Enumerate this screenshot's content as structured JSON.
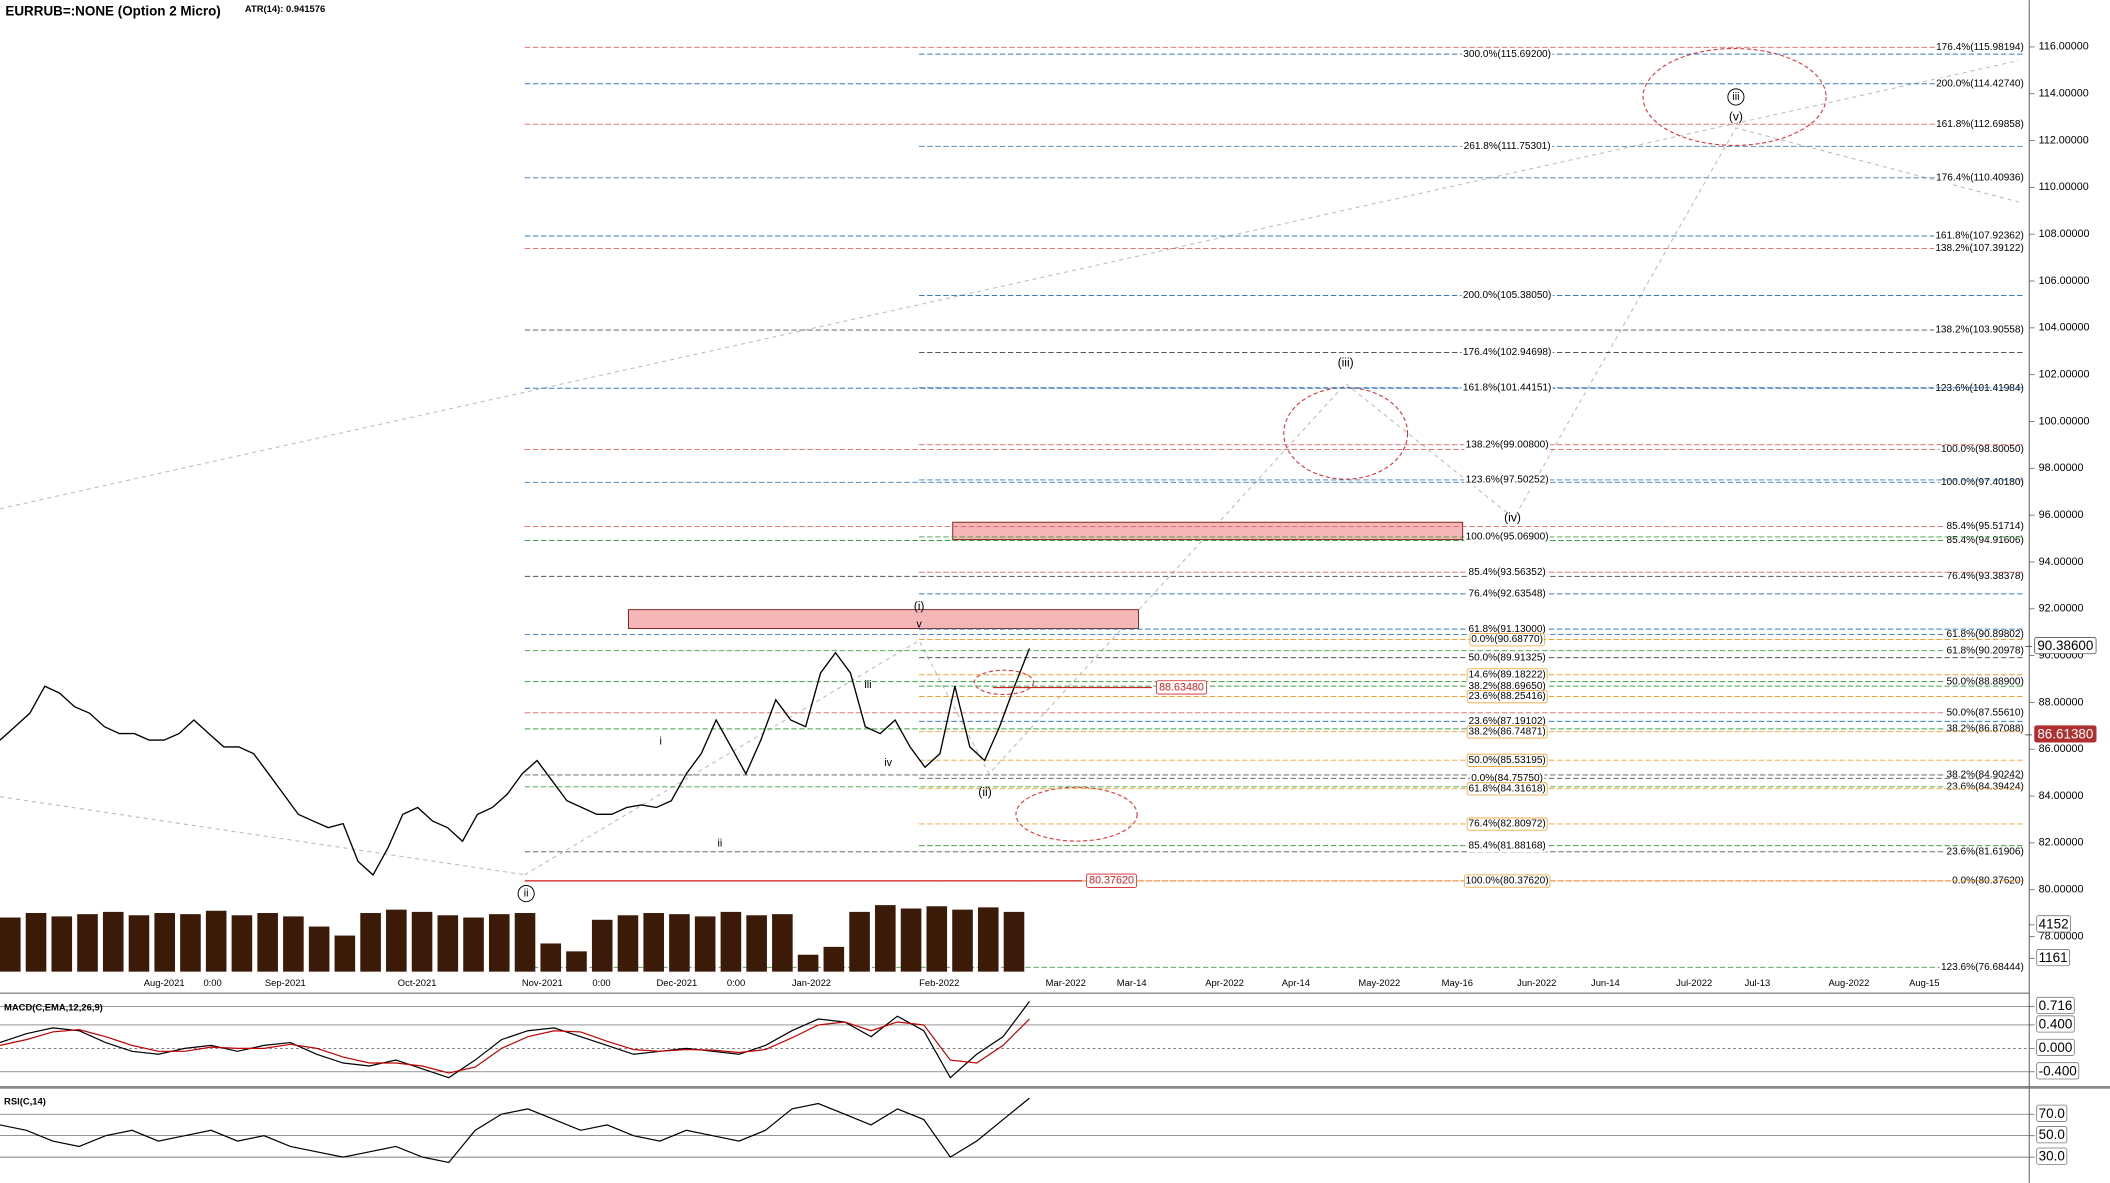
{
  "header": {
    "symbol": "EURRUB=:NONE (Option 2 Micro)",
    "atr": "ATR(14): 0.941576"
  },
  "chart_data": [
    {
      "type": "line",
      "series": [
        {
          "color": "#000000",
          "values": [
            86.39,
            86.96,
            87.54,
            88.69,
            88.4,
            87.82,
            87.54,
            86.96,
            86.67,
            86.67,
            86.39,
            86.39,
            86.67,
            87.25,
            86.67,
            86.1,
            86.1,
            85.81,
            84.95,
            84.08,
            83.22,
            82.93,
            82.65,
            82.82,
            81.21,
            80.63,
            81.78,
            83.22,
            83.51,
            82.93,
            82.65,
            82.07,
            83.22,
            83.51,
            84.08,
            84.95,
            85.52,
            84.66,
            83.8,
            83.51,
            83.22,
            83.22,
            83.51,
            83.62,
            83.51,
            83.8,
            84.95,
            85.81,
            87.25,
            86.1,
            84.95,
            86.39,
            88.11,
            87.25,
            86.96,
            89.26,
            90.12,
            89.26,
            86.96,
            86.67,
            87.25,
            86.1,
            85.23,
            85.81,
            88.69,
            86.1,
            85.52,
            86.96,
            88.69,
            90.3
          ]
        }
      ],
      "ylim": [
        76.5,
        118
      ],
      "yticks": [
        {
          "value": 78,
          "label": "78.00000"
        },
        {
          "value": 80,
          "label": "80.00000"
        },
        {
          "value": 82,
          "label": "82.00000"
        },
        {
          "value": 84,
          "label": "84.00000"
        },
        {
          "value": 86,
          "label": "86.00000"
        },
        {
          "value": 88,
          "label": "88.00000"
        },
        {
          "value": 90,
          "label": "90.00000"
        },
        {
          "value": 92,
          "label": "92.00000"
        },
        {
          "value": 94,
          "label": "94.00000"
        },
        {
          "value": 96,
          "label": "96.00000"
        },
        {
          "value": 98,
          "label": "98.00000"
        },
        {
          "value": 100,
          "label": "100.00000"
        },
        {
          "value": 102,
          "label": "102.00000"
        },
        {
          "value": 104,
          "label": "104.00000"
        },
        {
          "value": 106,
          "label": "106.00000"
        },
        {
          "value": 108,
          "label": "108.00000"
        },
        {
          "value": 110,
          "label": "110.00000"
        },
        {
          "value": 112,
          "label": "112.00000"
        },
        {
          "value": 114,
          "label": "114.00000"
        },
        {
          "value": 116,
          "label": "116.00000"
        }
      ],
      "xticks": [
        "Aug-2021",
        "0:00",
        "Sep-2021",
        "Oct-2021",
        "Nov-2021",
        "0:00",
        "Dec-2021",
        "0:00",
        "Jan-2022",
        "Feb-2022",
        "Mar-2022",
        "Mar-14",
        "Apr-2022",
        "Apr-14",
        "May-2022",
        "May-16",
        "Jun-2022",
        "Jun-14",
        "Jul-2022",
        "Jul-13",
        "Aug-2022",
        "Aug-15"
      ],
      "levels_center": [
        {
          "label": "300.0%(115.69200)",
          "value": 115.692,
          "color": "#3a7ab8"
        },
        {
          "label": "261.8%(111.75301)",
          "value": 111.75301,
          "color": "#3a7ab8"
        },
        {
          "label": "200.0%(105.38050)",
          "value": 105.3805,
          "color": "#3a7ab8"
        },
        {
          "label": "176.4%(102.94698)",
          "value": 102.94698,
          "color": "#555555"
        },
        {
          "label": "161.8%(101.44151)",
          "value": 101.44151,
          "color": "#3a7ab8"
        },
        {
          "label": "138.2%(99.00800)",
          "value": 99.008,
          "color": "#e06060"
        },
        {
          "label": "123.6%(97.50252)",
          "value": 97.50252,
          "color": "#3a7ab8"
        },
        {
          "label": "100.0%(95.06900)",
          "value": 95.069,
          "color": "#40a040"
        },
        {
          "label": "85.4%(93.56352)",
          "value": 93.56352,
          "color": "#e06060"
        },
        {
          "label": "76.4%(92.63548)",
          "value": 92.63548,
          "color": "#3a7ab8"
        },
        {
          "label": "61.8%(91.13000)",
          "value": 91.13,
          "color": "#3a7ab8"
        },
        {
          "label": "0.0%(90.68770)",
          "value": 90.6877,
          "color": "#f0a030"
        },
        {
          "label": "50.0%(89.91325)",
          "value": 89.91325,
          "color": "#555555"
        },
        {
          "label": "14.6%(89.18222)",
          "value": 89.18222,
          "color": "#f0a030"
        },
        {
          "label": "38.2%(88.69650)",
          "value": 88.6965,
          "color": "#40a040"
        },
        {
          "label": "23.6%(88.25416)",
          "value": 88.25416,
          "color": "#f0a030"
        },
        {
          "label": "23.6%(87.19102)",
          "value": 87.19102,
          "color": "#3a7ab8"
        },
        {
          "label": "38.2%(86.74871)",
          "value": 86.74871,
          "color": "#f0a030"
        },
        {
          "label": "50.0%(85.53195)",
          "value": 85.53195,
          "color": "#f0a030"
        },
        {
          "label": "0.0%(84.75750)",
          "value": 84.7575,
          "color": "#555555"
        },
        {
          "label": "61.8%(84.31618)",
          "value": 84.31618,
          "color": "#f0a030"
        },
        {
          "label": "76.4%(82.80972)",
          "value": 82.80972,
          "color": "#f0a030"
        },
        {
          "label": "85.4%(81.88168)",
          "value": 81.88168,
          "color": "#40a040"
        },
        {
          "label": "100.0%(80.37620)",
          "value": 80.3762,
          "color": "#f0a030"
        }
      ],
      "levels_right": [
        {
          "label": "176.4%(115.98194)",
          "value": 115.98194,
          "color": "#e06060"
        },
        {
          "label": "200.0%(114.42740)",
          "value": 114.4274,
          "color": "#3a7ab8"
        },
        {
          "label": "161.8%(112.69858)",
          "value": 112.69858,
          "color": "#e06060"
        },
        {
          "label": "176.4%(110.40936)",
          "value": 110.40936,
          "color": "#3a7ab8"
        },
        {
          "label": "161.8%(107.92362)",
          "value": 107.92362,
          "color": "#3a7ab8"
        },
        {
          "label": "138.2%(107.39122)",
          "value": 107.39122,
          "color": "#e06060"
        },
        {
          "label": "138.2%(103.90558)",
          "value": 103.90558,
          "color": "#555555"
        },
        {
          "label": "123.6%(101.41984)",
          "value": 101.41984,
          "color": "#3a7ab8"
        },
        {
          "label": "100.0%(98.80050)",
          "value": 98.8005,
          "color": "#e06060"
        },
        {
          "label": "100.0%(97.40180)",
          "value": 97.4018,
          "color": "#3a7ab8"
        },
        {
          "label": "85.4%(95.51714)",
          "value": 95.51714,
          "color": "#e06060"
        },
        {
          "label": "85.4%(94.91606)",
          "value": 94.91606,
          "color": "#40a040"
        },
        {
          "label": "76.4%(93.38378)",
          "value": 93.38378,
          "color": "#555555"
        },
        {
          "label": "61.8%(90.89802)",
          "value": 90.89802,
          "color": "#3a7ab8"
        },
        {
          "label": "61.8%(90.20978)",
          "value": 90.20978,
          "color": "#40a040"
        },
        {
          "label": "50.0%(88.88900)",
          "value": 88.889,
          "color": "#40a040"
        },
        {
          "label": "50.0%(87.55610)",
          "value": 87.5561,
          "color": "#e06060"
        },
        {
          "label": "38.2%(86.87088)",
          "value": 86.87088,
          "color": "#40a040"
        },
        {
          "label": "38.2%(84.90242)",
          "value": 84.90242,
          "color": "#555555"
        },
        {
          "label": "23.6%(84.39424)",
          "value": 84.39424,
          "color": "#40a040"
        },
        {
          "label": "23.6%(81.61906)",
          "value": 81.61906,
          "color": "#555555"
        },
        {
          "label": "0.0%(80.37620)",
          "value": 80.3762,
          "color": "#e06060"
        },
        {
          "label": "123.6%(76.68444)",
          "value": 76.68444,
          "color": "#40a040"
        }
      ],
      "markers": [
        {
          "value": 88.6348,
          "label": "88.63480"
        },
        {
          "value": 80.3762,
          "label": "80.37620"
        }
      ],
      "price_tags": [
        {
          "value": 90.386,
          "label": "90.38600"
        },
        {
          "value": 86.6138,
          "label": "86.61380"
        }
      ],
      "annotations": [
        "(i)",
        "v",
        "iii",
        "iv",
        "(ii)",
        "i",
        "ii",
        "ii",
        "(iii)",
        "(iv)",
        "iii",
        "(v)"
      ]
    },
    {
      "type": "bar",
      "color": "#3b1a08",
      "values": [
        4800,
        5200,
        4900,
        5100,
        5300,
        5000,
        5200,
        5100,
        5400,
        5000,
        5200,
        4900,
        4000,
        3200,
        5200,
        5500,
        5300,
        5000,
        4800,
        5100,
        5200,
        2500,
        1800,
        4600,
        5000,
        5200,
        5100,
        4900,
        5300,
        5000,
        5100,
        1500,
        2200,
        5300,
        5900,
        5600,
        5800,
        5500,
        5700,
        5300
      ],
      "ylim": [
        0,
        7400
      ],
      "yticks": [
        4152,
        1161
      ]
    },
    {
      "type": "line",
      "title": "MACD(C,EMA,12,26,9)",
      "series": [
        {
          "color": "#000000",
          "values": [
            0.1,
            0.25,
            0.35,
            0.3,
            0.1,
            -0.05,
            -0.1,
            0.0,
            0.05,
            -0.05,
            0.05,
            0.1,
            -0.1,
            -0.25,
            -0.3,
            -0.2,
            -0.35,
            -0.5,
            -0.2,
            0.15,
            0.3,
            0.35,
            0.2,
            0.05,
            -0.1,
            -0.05,
            0.0,
            -0.05,
            -0.1,
            0.05,
            0.3,
            0.5,
            0.45,
            0.2,
            0.55,
            0.3,
            -0.5,
            -0.1,
            0.2,
            0.8
          ]
        },
        {
          "color": "#c00000",
          "values": [
            0.05,
            0.15,
            0.28,
            0.32,
            0.2,
            0.05,
            -0.05,
            -0.05,
            0.02,
            0.0,
            0.0,
            0.07,
            0.0,
            -0.15,
            -0.25,
            -0.25,
            -0.3,
            -0.42,
            -0.32,
            0.0,
            0.2,
            0.3,
            0.28,
            0.12,
            -0.02,
            -0.05,
            -0.02,
            -0.03,
            -0.07,
            -0.02,
            0.18,
            0.4,
            0.45,
            0.3,
            0.45,
            0.4,
            -0.2,
            -0.25,
            0.05,
            0.5
          ]
        }
      ],
      "ylim": [
        -0.62,
        0.85
      ],
      "yticks": [
        {
          "value": 0.716,
          "label": "0.716"
        },
        {
          "value": 0.4,
          "label": "0.400"
        },
        {
          "value": 0,
          "label": "0.000"
        },
        {
          "value": -0.4,
          "label": "-0.400"
        }
      ]
    },
    {
      "type": "line",
      "title": "RSI(C,14)",
      "series": [
        {
          "color": "#000000",
          "values": [
            60,
            55,
            45,
            40,
            50,
            55,
            45,
            50,
            55,
            45,
            50,
            40,
            35,
            30,
            35,
            40,
            30,
            25,
            55,
            70,
            75,
            65,
            55,
            60,
            50,
            45,
            55,
            50,
            45,
            55,
            75,
            80,
            70,
            60,
            75,
            65,
            30,
            45,
            65,
            85
          ]
        }
      ],
      "ylim": [
        11,
        90
      ],
      "yticks": [
        {
          "value": 70,
          "label": "70.0"
        },
        {
          "value": 50,
          "label": "50.0"
        },
        {
          "value": 30,
          "label": "30.0"
        }
      ]
    }
  ]
}
